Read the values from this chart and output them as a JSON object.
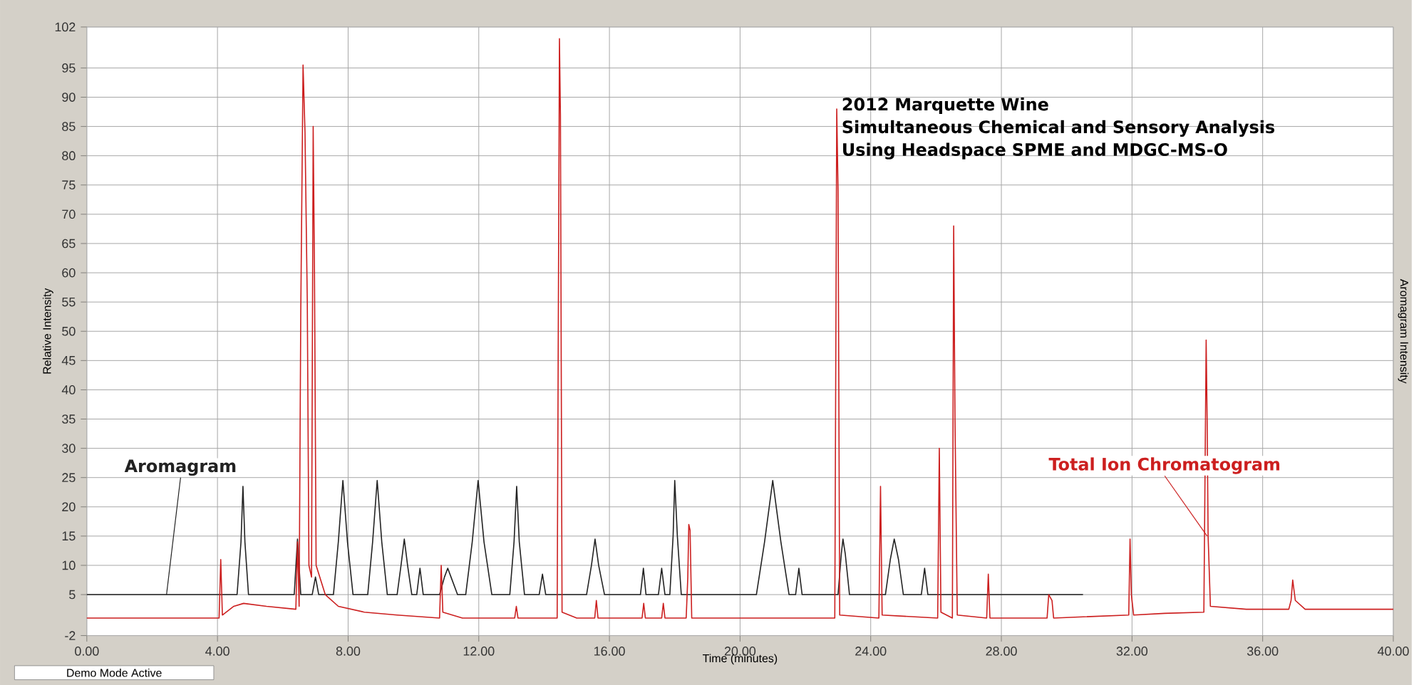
{
  "chart_data": {
    "type": "line",
    "title": "2012 Marquette Wine",
    "subtitle": "Simultaneous Chemical and Sensory Analysis Using Headspace SPME and MDGC-MS-O",
    "xlabel": "Time (minutes)",
    "ylabel": "Relative Intensity",
    "y2label": "Aromagram Intensity",
    "annotations": [
      "Demo Mode Active"
    ],
    "xlim": [
      0,
      40
    ],
    "ylim": [
      -2,
      102
    ],
    "xticks": [
      {
        "value": 0,
        "label": "0.00"
      },
      {
        "value": 4,
        "label": "4.00"
      },
      {
        "value": 8,
        "label": "8.00"
      },
      {
        "value": 12,
        "label": "12.00"
      },
      {
        "value": 16,
        "label": "16.00"
      },
      {
        "value": 20,
        "label": "20.00"
      },
      {
        "value": 24,
        "label": "24.00"
      },
      {
        "value": 28,
        "label": "28.00"
      },
      {
        "value": 32,
        "label": "32.00"
      },
      {
        "value": 36,
        "label": "36.00"
      },
      {
        "value": 40,
        "label": "40.00"
      }
    ],
    "yticks": [
      -2,
      5,
      10,
      15,
      20,
      25,
      30,
      35,
      40,
      45,
      50,
      55,
      60,
      65,
      70,
      75,
      80,
      85,
      90,
      95,
      102
    ],
    "grid": true,
    "marker": "none",
    "line_style": "solid",
    "series": [
      {
        "name": "Aromagram",
        "color": "#222222",
        "x": [
          0,
          4.6,
          4.72,
          4.78,
          4.84,
          4.95,
          6.35,
          6.45,
          6.55,
          6.9,
          7.0,
          7.1,
          7.55,
          7.7,
          7.84,
          7.98,
          8.15,
          8.6,
          8.75,
          8.89,
          9.03,
          9.2,
          9.5,
          9.62,
          9.72,
          9.82,
          9.95,
          10.1,
          10.2,
          10.3,
          10.8,
          10.95,
          11.05,
          11.15,
          11.35,
          11.6,
          11.8,
          11.98,
          12.16,
          12.4,
          12.95,
          13.08,
          13.16,
          13.24,
          13.4,
          13.85,
          13.95,
          14.05,
          15.3,
          15.45,
          15.56,
          15.67,
          15.85,
          16.95,
          17.04,
          17.12,
          17.5,
          17.6,
          17.7,
          17.85,
          17.95,
          18.0,
          18.08,
          18.2,
          20.5,
          20.75,
          21.0,
          21.25,
          21.5,
          21.7,
          21.8,
          21.9,
          23.0,
          23.1,
          23.15,
          23.22,
          23.35,
          24.45,
          24.6,
          24.72,
          24.85,
          25.0,
          25.55,
          25.65,
          25.75,
          30.5
        ],
        "values": [
          5,
          5,
          14,
          23.5,
          14,
          5,
          5,
          14.5,
          5,
          5,
          8,
          5,
          5,
          14,
          24.5,
          14,
          5,
          5,
          14,
          24.5,
          14,
          5,
          5,
          10,
          14.5,
          10,
          5,
          5,
          9.5,
          5,
          5,
          8,
          9.5,
          8,
          5,
          5,
          14,
          24.5,
          14,
          5,
          5,
          14,
          23.5,
          14,
          5,
          5,
          8.5,
          5,
          5,
          10,
          14.5,
          10,
          5,
          5,
          9.5,
          5,
          5,
          9.5,
          5,
          5,
          15,
          24.5,
          15,
          5,
          5,
          14,
          24.5,
          14,
          5,
          5,
          9.5,
          5,
          5,
          12,
          14.5,
          12,
          5,
          5,
          11,
          14.5,
          11,
          5,
          5,
          9.5,
          5,
          5
        ]
      },
      {
        "name": "Total Ion Chromatogram",
        "color": "#cc1f1f",
        "x": [
          0,
          4.05,
          4.1,
          4.15,
          4.5,
          4.8,
          5.5,
          6.4,
          6.45,
          6.5,
          6.55,
          6.62,
          6.68,
          6.75,
          6.8,
          6.88,
          6.93,
          6.97,
          7.02,
          7.3,
          7.7,
          8.5,
          9.5,
          10.8,
          10.85,
          10.9,
          11.5,
          13.1,
          13.15,
          13.2,
          14.4,
          14.47,
          14.5,
          14.55,
          15.0,
          15.55,
          15.6,
          15.65,
          17.0,
          17.05,
          17.1,
          17.6,
          17.65,
          17.7,
          18.35,
          18.4,
          18.43,
          18.47,
          18.52,
          22.9,
          22.96,
          23.0,
          23.05,
          24.25,
          24.3,
          24.35,
          26.05,
          26.1,
          26.15,
          26.5,
          26.54,
          26.58,
          26.65,
          27.55,
          27.6,
          27.65,
          29.4,
          29.45,
          29.55,
          29.6,
          31.9,
          31.94,
          31.98,
          32.05,
          33.0,
          34.2,
          34.27,
          34.3,
          34.33,
          34.4,
          35.5,
          36.8,
          36.87,
          36.92,
          37.0,
          37.3,
          40
        ],
        "values": [
          1,
          1,
          11,
          1.5,
          3,
          3.5,
          3,
          2.5,
          14,
          3,
          53,
          95.5,
          84,
          55,
          10,
          8,
          85,
          60,
          10,
          5,
          3,
          2,
          1.5,
          1,
          10,
          2,
          1,
          1,
          3,
          1,
          1,
          100,
          87,
          2,
          1,
          1,
          4,
          1,
          1,
          3.5,
          1,
          1,
          3.5,
          1,
          1,
          8,
          17,
          16,
          1,
          1,
          88,
          74,
          1.5,
          1,
          23.5,
          1.5,
          1,
          30,
          2,
          1,
          68,
          35,
          1.5,
          1,
          8.5,
          1,
          1,
          5,
          4,
          1,
          1.5,
          14.5,
          5,
          1.5,
          1.8,
          2,
          48.5,
          35,
          15,
          3,
          2.5,
          2.5,
          4,
          7.5,
          4,
          2.5,
          2.5
        ]
      }
    ]
  }
}
